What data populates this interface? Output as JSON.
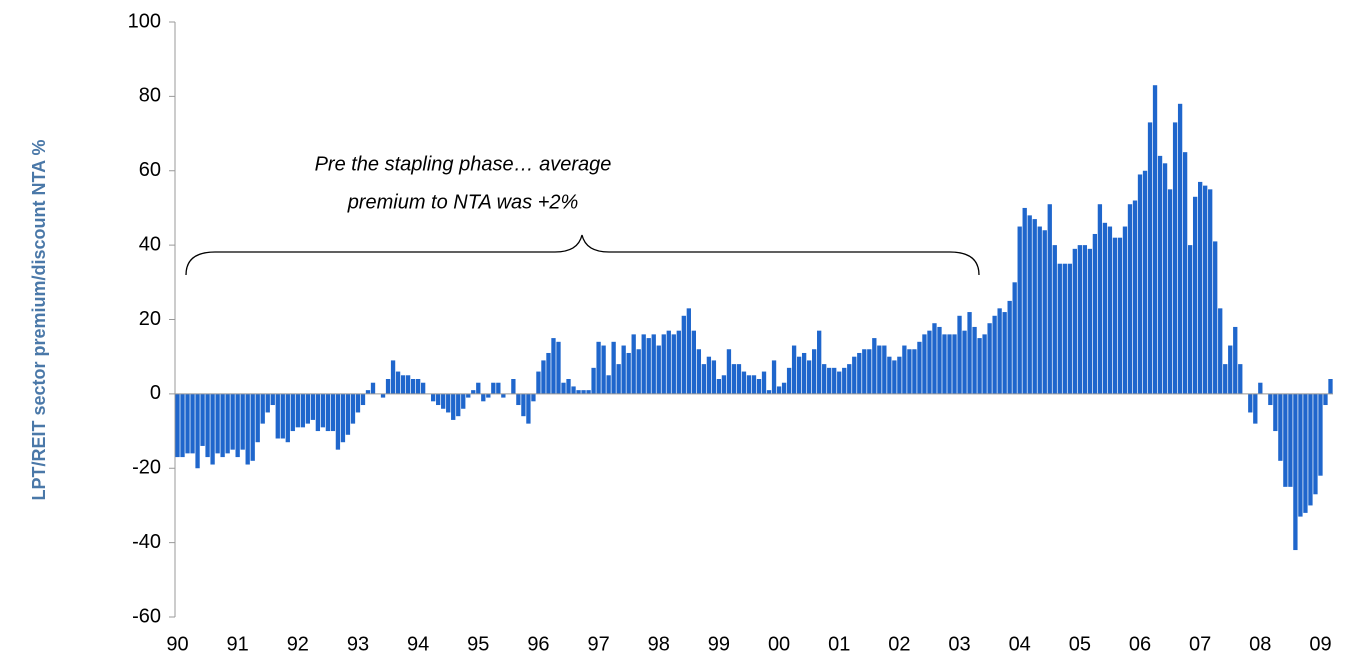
{
  "chart_data": {
    "type": "bar",
    "y_label": "LPT/REIT sector premium/discount NTA %",
    "annotation": [
      "Pre the stapling phase… average",
      "premium to NTA was +2%"
    ],
    "color": "#1f66cc",
    "ylim": [
      -60,
      100
    ],
    "yticks": [
      -60,
      -40,
      -20,
      0,
      20,
      40,
      60,
      80,
      100
    ],
    "categories": [
      "90",
      null,
      null,
      null,
      null,
      null,
      null,
      null,
      null,
      null,
      null,
      null,
      "91",
      null,
      null,
      null,
      null,
      null,
      null,
      null,
      null,
      null,
      null,
      null,
      "92",
      null,
      null,
      null,
      null,
      null,
      null,
      null,
      null,
      null,
      null,
      null,
      "93",
      null,
      null,
      null,
      null,
      null,
      null,
      null,
      null,
      null,
      null,
      null,
      "94",
      null,
      null,
      null,
      null,
      null,
      null,
      null,
      null,
      null,
      null,
      null,
      "95",
      null,
      null,
      null,
      null,
      null,
      null,
      null,
      null,
      null,
      null,
      null,
      "96",
      null,
      null,
      null,
      null,
      null,
      null,
      null,
      null,
      null,
      null,
      null,
      "97",
      null,
      null,
      null,
      null,
      null,
      null,
      null,
      null,
      null,
      null,
      null,
      "98",
      null,
      null,
      null,
      null,
      null,
      null,
      null,
      null,
      null,
      null,
      null,
      "99",
      null,
      null,
      null,
      null,
      null,
      null,
      null,
      null,
      null,
      null,
      null,
      "00",
      null,
      null,
      null,
      null,
      null,
      null,
      null,
      null,
      null,
      null,
      null,
      "01",
      null,
      null,
      null,
      null,
      null,
      null,
      null,
      null,
      null,
      null,
      null,
      "02",
      null,
      null,
      null,
      null,
      null,
      null,
      null,
      null,
      null,
      null,
      null,
      "03",
      null,
      null,
      null,
      null,
      null,
      null,
      null,
      null,
      null,
      null,
      null,
      "04",
      null,
      null,
      null,
      null,
      null,
      null,
      null,
      null,
      null,
      null,
      null,
      "05",
      null,
      null,
      null,
      null,
      null,
      null,
      null,
      null,
      null,
      null,
      null,
      "06",
      null,
      null,
      null,
      null,
      null,
      null,
      null,
      null,
      null,
      null,
      null,
      "07",
      null,
      null,
      null,
      null,
      null,
      null,
      null,
      null,
      null,
      null,
      null,
      "08",
      null,
      null,
      null,
      null,
      null,
      null,
      null,
      null,
      null,
      null,
      null,
      "09",
      null,
      null
    ],
    "values": [
      -17,
      -17,
      -16,
      -16,
      -20,
      -14,
      -17,
      -19,
      -16,
      -17,
      -16,
      -15,
      -17,
      -15,
      -19,
      -18,
      -13,
      -8,
      -5,
      -3,
      -12,
      -12,
      -13,
      -10,
      -9,
      -9,
      -8,
      -7,
      -10,
      -9,
      -10,
      -10,
      -15,
      -13,
      -11,
      -8,
      -5,
      -3,
      1,
      3,
      0,
      -1,
      4,
      9,
      6,
      5,
      5,
      4,
      4,
      3,
      0,
      -2,
      -3,
      -4,
      -5,
      -7,
      -6,
      -4,
      -1,
      1,
      3,
      -2,
      -1,
      3,
      3,
      -1,
      0,
      4,
      -3,
      -6,
      -8,
      -2,
      6,
      9,
      11,
      15,
      14,
      3,
      4,
      2,
      1,
      1,
      1,
      7,
      14,
      13,
      5,
      14,
      8,
      13,
      11,
      16,
      12,
      16,
      15,
      16,
      13,
      16,
      17,
      16,
      17,
      21,
      23,
      17,
      12,
      8,
      10,
      9,
      4,
      5,
      12,
      8,
      8,
      6,
      5,
      5,
      4,
      6,
      1,
      9,
      2,
      3,
      7,
      13,
      10,
      11,
      9,
      12,
      17,
      8,
      7,
      7,
      6,
      7,
      8,
      10,
      11,
      12,
      12,
      15,
      13,
      13,
      10,
      9,
      10,
      13,
      12,
      12,
      14,
      16,
      17,
      19,
      18,
      16,
      16,
      16,
      21,
      17,
      22,
      18,
      15,
      16,
      19,
      21,
      23,
      22,
      25,
      30,
      45,
      50,
      48,
      47,
      45,
      44,
      51,
      40,
      35,
      35,
      35,
      39,
      40,
      40,
      39,
      43,
      51,
      46,
      45,
      42,
      42,
      45,
      51,
      52,
      59,
      60,
      73,
      83,
      64,
      62,
      55,
      73,
      78,
      65,
      40,
      53,
      57,
      56,
      55,
      41,
      23,
      8,
      13,
      18,
      8,
      0,
      -5,
      -8,
      3,
      0,
      -3,
      -10,
      -18,
      -25,
      -25,
      -42,
      -33,
      -32,
      -30,
      -27,
      -22,
      -3,
      4
    ]
  }
}
